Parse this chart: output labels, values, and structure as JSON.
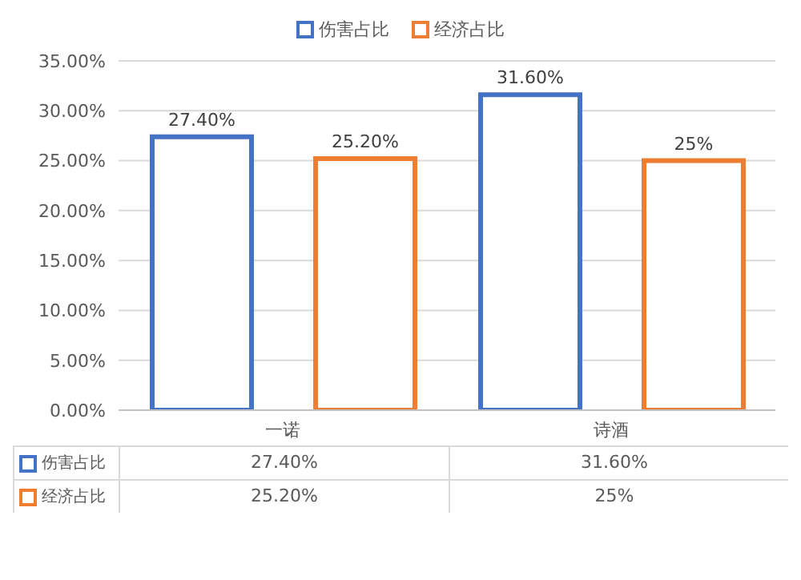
{
  "chart_data": {
    "type": "bar",
    "categories": [
      "一诺",
      "诗酒"
    ],
    "series": [
      {
        "name": "伤害占比",
        "color": "#4472c4",
        "values": [
          27.4,
          31.6
        ],
        "value_labels": [
          "27.40%",
          "31.60%"
        ]
      },
      {
        "name": "经济占比",
        "color": "#ed7d31",
        "values": [
          25.2,
          25
        ],
        "value_labels": [
          "25.20%",
          "25%"
        ]
      }
    ],
    "ylim": [
      0,
      35
    ],
    "yticks": [
      {
        "value": 0,
        "label": "0.00%"
      },
      {
        "value": 5,
        "label": "5.00%"
      },
      {
        "value": 10,
        "label": "10.00%"
      },
      {
        "value": 15,
        "label": "15.00%"
      },
      {
        "value": 20,
        "label": "20.00%"
      },
      {
        "value": 25,
        "label": "25.00%"
      },
      {
        "value": 30,
        "label": "30.00%"
      },
      {
        "value": 35,
        "label": "35.00%"
      }
    ],
    "grid": "y",
    "legend": "top"
  }
}
